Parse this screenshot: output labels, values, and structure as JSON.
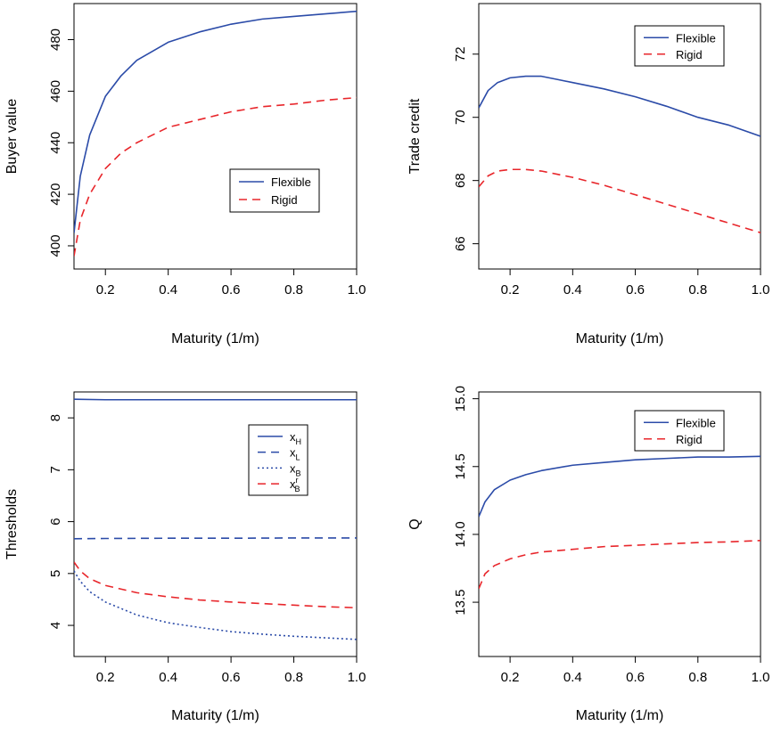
{
  "chart_data": [
    {
      "type": "line",
      "xlabel": "Maturity (1/m)",
      "ylabel": "Buyer value",
      "xlim": [
        0.1,
        1.0
      ],
      "ylim": [
        391,
        494
      ],
      "xticks": [
        0.2,
        0.4,
        0.6,
        0.8,
        1.0
      ],
      "xtick_labels": [
        "0.2",
        "0.4",
        "0.6",
        "0.8",
        "1.0"
      ],
      "yticks": [
        400,
        420,
        440,
        460,
        480
      ],
      "ytick_labels": [
        "400",
        "420",
        "440",
        "460",
        "480"
      ],
      "legend_position": "center-right",
      "series": [
        {
          "name": "Flexible",
          "color": "#2b4ba8",
          "dash": "solid",
          "x": [
            0.1,
            0.12,
            0.15,
            0.2,
            0.25,
            0.3,
            0.4,
            0.5,
            0.6,
            0.7,
            0.8,
            0.9,
            1.0
          ],
          "values": [
            405,
            427,
            443,
            458,
            466,
            472,
            479,
            483,
            486,
            488,
            489,
            490,
            491
          ]
        },
        {
          "name": "Rigid",
          "color": "#e8262b",
          "dash": "dashed",
          "x": [
            0.1,
            0.12,
            0.15,
            0.2,
            0.25,
            0.3,
            0.4,
            0.5,
            0.6,
            0.7,
            0.8,
            0.9,
            1.0
          ],
          "values": [
            396,
            410,
            420,
            430,
            436,
            440,
            446,
            449,
            452,
            454,
            455,
            456.5,
            457.5
          ]
        }
      ]
    },
    {
      "type": "line",
      "xlabel": "Maturity (1/m)",
      "ylabel": "Trade credit",
      "xlim": [
        0.1,
        1.0
      ],
      "ylim": [
        65.2,
        73.6
      ],
      "xticks": [
        0.2,
        0.4,
        0.6,
        0.8,
        1.0
      ],
      "xtick_labels": [
        "0.2",
        "0.4",
        "0.6",
        "0.8",
        "1.0"
      ],
      "yticks": [
        66,
        68,
        70,
        72
      ],
      "ytick_labels": [
        "66",
        "68",
        "70",
        "72"
      ],
      "legend_position": "top-right",
      "series": [
        {
          "name": "Flexible",
          "color": "#2b4ba8",
          "dash": "solid",
          "x": [
            0.1,
            0.13,
            0.16,
            0.2,
            0.25,
            0.3,
            0.35,
            0.4,
            0.5,
            0.6,
            0.7,
            0.8,
            0.9,
            1.0
          ],
          "values": [
            70.3,
            70.85,
            71.1,
            71.25,
            71.3,
            71.3,
            71.2,
            71.1,
            70.9,
            70.65,
            70.35,
            70.0,
            69.75,
            69.4
          ]
        },
        {
          "name": "Rigid",
          "color": "#e8262b",
          "dash": "dashed",
          "x": [
            0.1,
            0.13,
            0.16,
            0.2,
            0.25,
            0.3,
            0.35,
            0.4,
            0.5,
            0.6,
            0.7,
            0.8,
            0.9,
            1.0
          ],
          "values": [
            67.8,
            68.15,
            68.3,
            68.35,
            68.35,
            68.3,
            68.2,
            68.1,
            67.85,
            67.55,
            67.25,
            66.95,
            66.65,
            66.35
          ]
        }
      ]
    },
    {
      "type": "line",
      "xlabel": "Maturity (1/m)",
      "ylabel": "Thresholds",
      "xlim": [
        0.1,
        1.0
      ],
      "ylim": [
        3.4,
        8.5
      ],
      "xticks": [
        0.2,
        0.4,
        0.6,
        0.8,
        1.0
      ],
      "xtick_labels": [
        "0.2",
        "0.4",
        "0.6",
        "0.8",
        "1.0"
      ],
      "yticks": [
        4,
        5,
        6,
        7,
        8
      ],
      "ytick_labels": [
        "4",
        "5",
        "6",
        "7",
        "8"
      ],
      "legend_position": "top-right",
      "series": [
        {
          "name": "xH",
          "label_base": "x",
          "label_sub": "H",
          "label_sup": "",
          "color": "#2b4ba8",
          "dash": "solid",
          "x": [
            0.1,
            0.2,
            0.4,
            0.6,
            0.8,
            1.0
          ],
          "values": [
            8.36,
            8.35,
            8.35,
            8.35,
            8.35,
            8.35
          ]
        },
        {
          "name": "xL",
          "label_base": "x",
          "label_sub": "L",
          "label_sup": "",
          "color": "#2b4ba8",
          "dash": "dashed",
          "x": [
            0.1,
            0.2,
            0.4,
            0.6,
            0.8,
            1.0
          ],
          "values": [
            5.67,
            5.675,
            5.68,
            5.68,
            5.685,
            5.685
          ]
        },
        {
          "name": "xB",
          "label_base": "x",
          "label_sub": "B",
          "label_sup": "",
          "color": "#2b4ba8",
          "dash": "dotted",
          "x": [
            0.1,
            0.12,
            0.15,
            0.2,
            0.3,
            0.4,
            0.5,
            0.6,
            0.7,
            0.8,
            0.9,
            1.0
          ],
          "values": [
            5.05,
            4.85,
            4.65,
            4.45,
            4.2,
            4.05,
            3.96,
            3.88,
            3.83,
            3.79,
            3.76,
            3.73
          ]
        },
        {
          "name": "xrB",
          "label_base": "x",
          "label_sub": "B",
          "label_sup": "r",
          "color": "#e8262b",
          "dash": "dashed",
          "x": [
            0.1,
            0.12,
            0.15,
            0.2,
            0.3,
            0.4,
            0.5,
            0.6,
            0.7,
            0.8,
            0.9,
            1.0
          ],
          "values": [
            5.22,
            5.05,
            4.9,
            4.77,
            4.63,
            4.55,
            4.49,
            4.45,
            4.42,
            4.39,
            4.36,
            4.34
          ]
        }
      ]
    },
    {
      "type": "line",
      "xlabel": "Maturity (1/m)",
      "ylabel": "Q",
      "xlim": [
        0.1,
        1.0
      ],
      "ylim": [
        13.1,
        15.05
      ],
      "xticks": [
        0.2,
        0.4,
        0.6,
        0.8,
        1.0
      ],
      "xtick_labels": [
        "0.2",
        "0.4",
        "0.6",
        "0.8",
        "1.0"
      ],
      "yticks": [
        13.5,
        14.0,
        14.5,
        15.0
      ],
      "ytick_labels": [
        "13.5",
        "14.0",
        "14.5",
        "15.0"
      ],
      "legend_position": "top-right",
      "series": [
        {
          "name": "Flexible",
          "color": "#2b4ba8",
          "dash": "solid",
          "x": [
            0.1,
            0.12,
            0.15,
            0.2,
            0.25,
            0.3,
            0.4,
            0.5,
            0.6,
            0.7,
            0.8,
            0.9,
            1.0
          ],
          "values": [
            14.13,
            14.24,
            14.33,
            14.4,
            14.44,
            14.47,
            14.51,
            14.53,
            14.55,
            14.56,
            14.57,
            14.57,
            14.575
          ]
        },
        {
          "name": "Rigid",
          "color": "#e8262b",
          "dash": "dashed",
          "x": [
            0.1,
            0.12,
            0.15,
            0.2,
            0.25,
            0.3,
            0.4,
            0.5,
            0.6,
            0.7,
            0.8,
            0.9,
            1.0
          ],
          "values": [
            13.6,
            13.71,
            13.77,
            13.82,
            13.85,
            13.87,
            13.89,
            13.91,
            13.92,
            13.93,
            13.94,
            13.945,
            13.955
          ]
        }
      ]
    }
  ]
}
